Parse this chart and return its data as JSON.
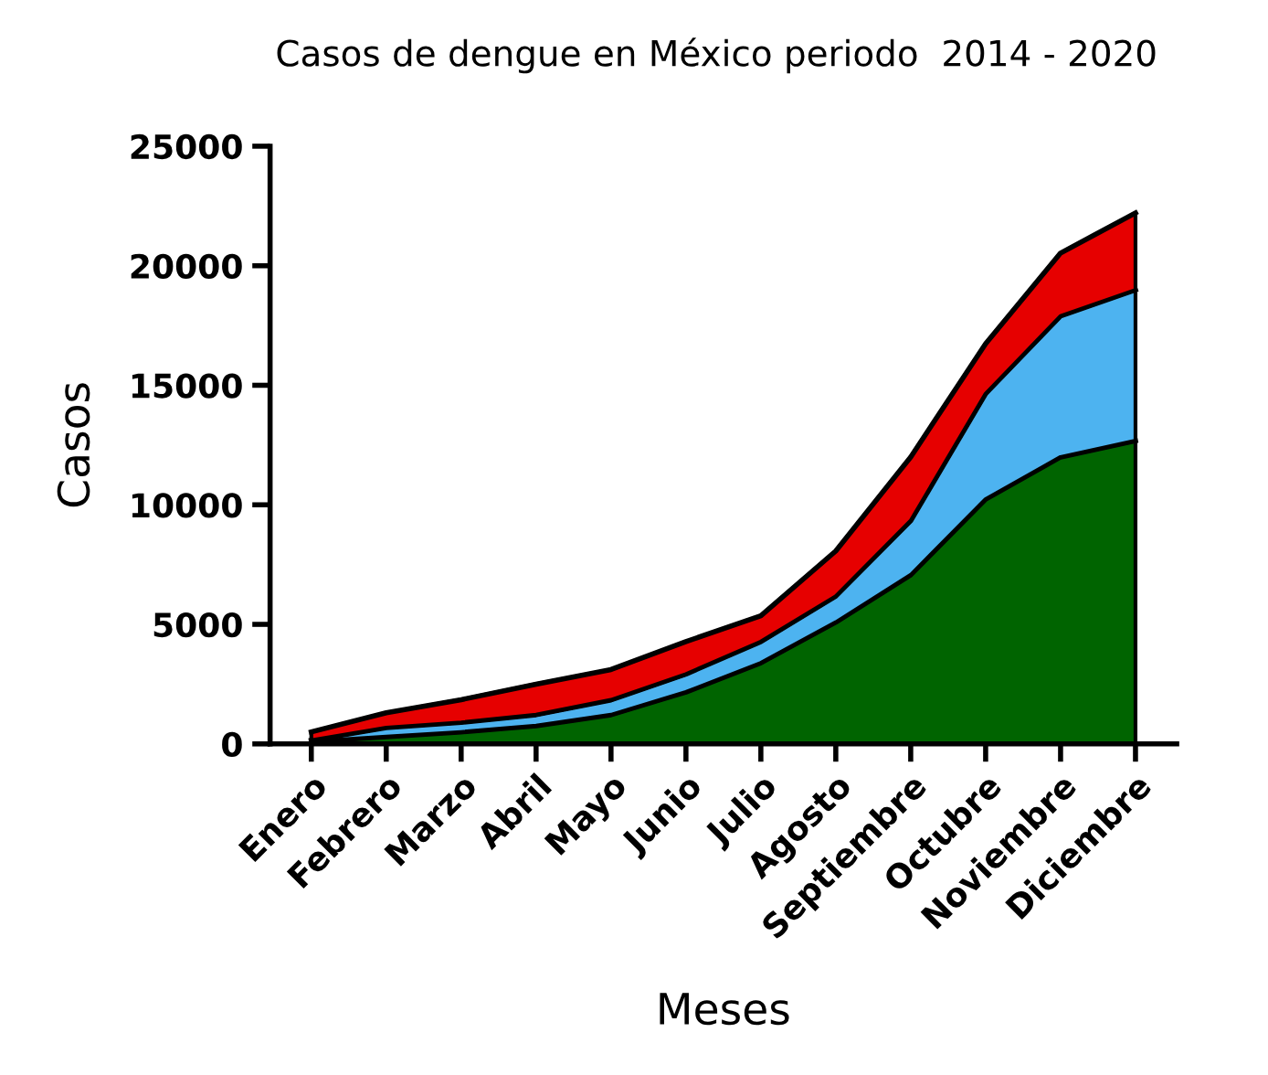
{
  "chart_data": {
    "type": "area",
    "title": "Casos de dengue en México periodo  2014 - 2020",
    "xlabel": "Meses",
    "ylabel": "Casos",
    "categories": [
      "Enero",
      "Febrero",
      "Marzo",
      "Abril",
      "Mayo",
      "Junio",
      "Julio",
      "Agosto",
      "Septiembre",
      "Octubre",
      "Noviembre",
      "Diciembre"
    ],
    "stacked": true,
    "series": [
      {
        "color": "#006400",
        "values": [
          100,
          300,
          500,
          760,
          1220,
          2170,
          3390,
          5090,
          7070,
          10240,
          12000,
          12680
        ]
      },
      {
        "color": "#4db3f0",
        "values": [
          50,
          380,
          400,
          460,
          620,
          750,
          890,
          1090,
          2270,
          4410,
          5900,
          6310
        ]
      },
      {
        "color": "#e60000",
        "values": [
          350,
          620,
          950,
          1280,
          1270,
          1360,
          1080,
          1890,
          2660,
          2090,
          2630,
          3220
        ]
      }
    ],
    "ylim": [
      0,
      25000
    ],
    "yticks": [
      0,
      5000,
      10000,
      15000,
      20000,
      25000
    ],
    "grid": false,
    "legend": false
  }
}
